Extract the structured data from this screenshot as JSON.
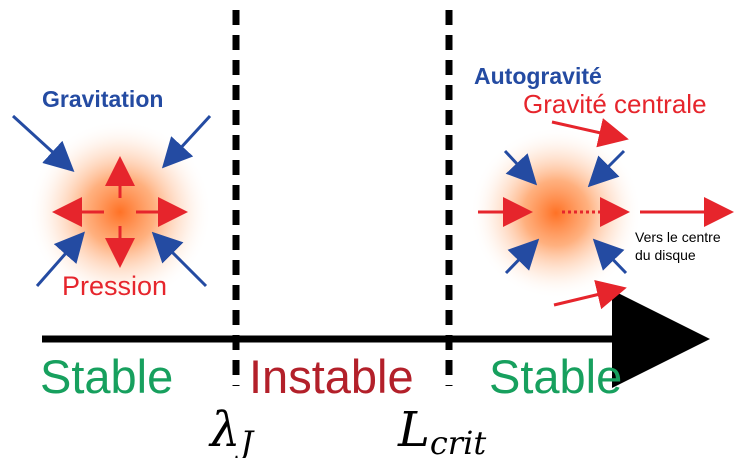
{
  "colors": {
    "blue": "#244BA2",
    "red": "#E6252C",
    "green": "#17A05E",
    "darkred": "#B3202A",
    "black": "#000000",
    "glow_center": "#ff6a1a"
  },
  "left_system": {
    "gravity_label": "Gravitation",
    "pressure_label": "Pression"
  },
  "right_system": {
    "selfgravity_label": "Autogravité",
    "central_gravity_label": "Gravité centrale",
    "disk_center_label_line1": "Vers le centre",
    "disk_center_label_line2": "du disque"
  },
  "regions": {
    "left": "Stable",
    "middle": "Instable",
    "right": "Stable"
  },
  "thresholds": {
    "jeans_symbol": "λ",
    "jeans_subscript": "J",
    "critical_symbol": "L",
    "critical_subscript": "crit"
  },
  "icons": {
    "axis": "right-arrow",
    "divider": "dashed-line"
  }
}
